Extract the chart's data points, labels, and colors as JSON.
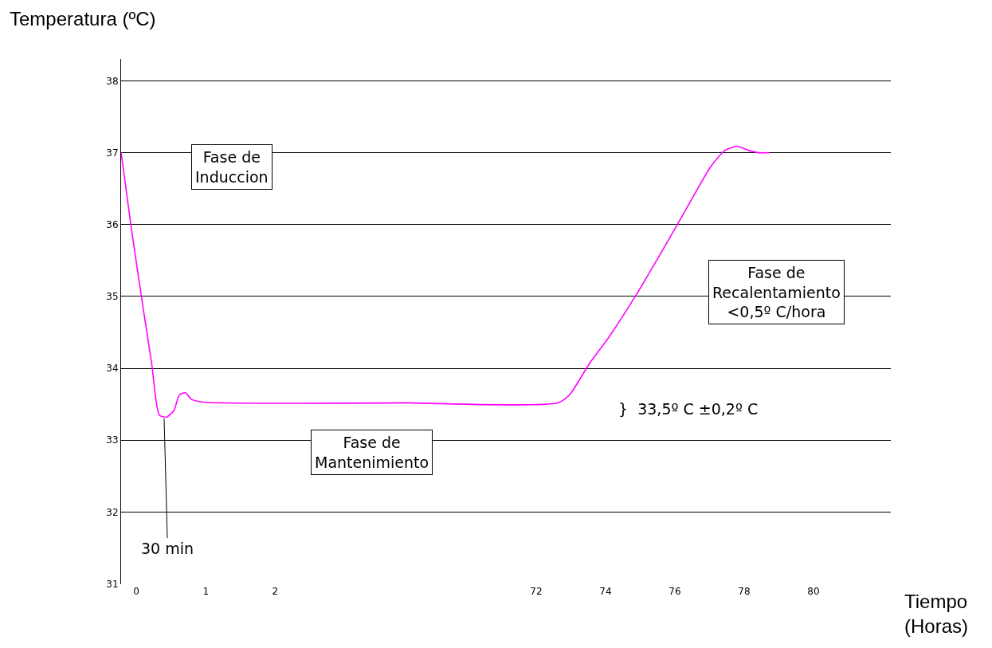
{
  "chart_data": [
    {
      "type": "line",
      "x": [
        -0.22,
        -0.07,
        0.08,
        0.22,
        0.33,
        0.43,
        0.54,
        0.62,
        0.71,
        0.79,
        0.97,
        3.88
      ],
      "series": [
        {
          "color": "#ff00ff",
          "values": [
            37.0,
            35.93,
            34.95,
            34.07,
            33.35,
            33.32,
            33.41,
            33.63,
            33.66,
            33.57,
            33.53,
            33.52
          ]
        }
      ],
      "xlim": [
        -0.22,
        3.88
      ],
      "xticks": [
        0,
        1,
        2
      ],
      "ylim": [
        31,
        38.3
      ],
      "yticks": [
        31,
        32,
        33,
        34,
        35,
        36,
        37,
        38
      ],
      "grid": "y",
      "marker": "none",
      "line_style": "solid",
      "ylabel": "Temperatura (ºC)",
      "annotations": [
        "Fase de\nInduccion",
        "Fase de\nMantenimiento",
        {
          "text": "30 min",
          "x": 0.4,
          "y": 33.3
        }
      ]
    },
    {
      "type": "line",
      "x": [
        68.23,
        72.62,
        72.96,
        73.54,
        74.12,
        74.92,
        76.06,
        77.04,
        77.44,
        77.8,
        78.14,
        78.42,
        78.72
      ],
      "series": [
        {
          "color": "#ff00ff",
          "values": [
            33.52,
            33.52,
            33.63,
            34.07,
            34.45,
            35.05,
            35.99,
            36.81,
            37.03,
            37.09,
            37.03,
            37.0,
            37.0
          ]
        }
      ],
      "xlim": [
        68.23,
        82.23
      ],
      "xticks": [
        72,
        74,
        76,
        78,
        80
      ],
      "yticks": [
        31,
        32,
        33,
        34,
        35,
        36,
        37,
        38
      ],
      "tick_labels": "x",
      "grid": "y",
      "marker": "none",
      "line_style": "solid",
      "xlabel": "Tiempo\n(Horas)",
      "annotations": [
        "Fase de\nRecalentamiento\n<0,5º C/hora",
        "}  33,5º C ±0,2º C"
      ]
    }
  ]
}
